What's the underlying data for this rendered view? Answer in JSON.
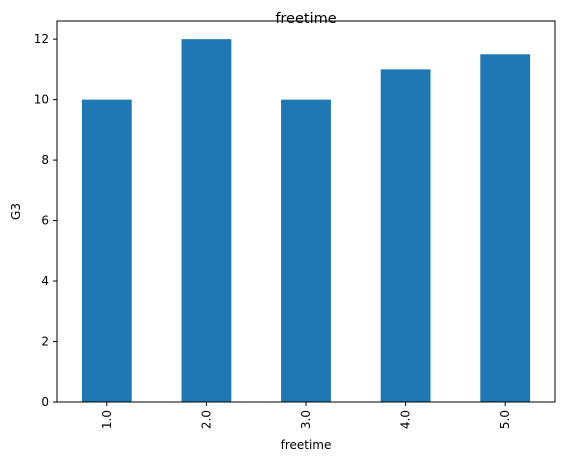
{
  "chart_data": {
    "type": "bar",
    "title": "freetime",
    "xlabel": "freetime",
    "ylabel": "G3",
    "categories": [
      "1.0",
      "2.0",
      "3.0",
      "4.0",
      "5.0"
    ],
    "values": [
      10,
      12,
      10,
      11,
      11.5
    ],
    "yticks": [
      0,
      2,
      4,
      6,
      8,
      10,
      12
    ],
    "ylim": [
      0,
      12.6
    ],
    "bar_color": "#1f77b4",
    "grid": false,
    "legend": "none"
  }
}
